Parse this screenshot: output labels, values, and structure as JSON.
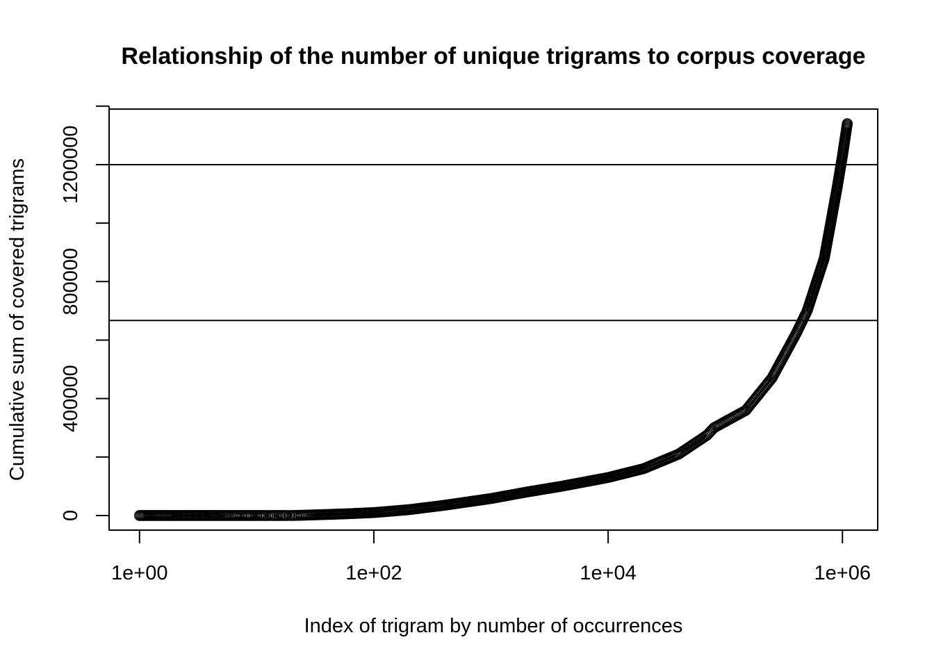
{
  "chart_data": {
    "type": "scatter",
    "title": "Relationship of the number of unique trigrams to corpus coverage",
    "xlabel": "Index of trigram by number of occurrences",
    "ylabel": "Cumulative sum of covered trigrams",
    "x_scale": "log",
    "xlim": [
      0.55,
      2000000
    ],
    "ylim": [
      -50000,
      1390000
    ],
    "x_ticks": [
      1,
      100,
      10000,
      1000000
    ],
    "x_tick_labels": [
      "1e+00",
      "1e+02",
      "1e+04",
      "1e+06"
    ],
    "y_ticks": [
      0,
      200000,
      400000,
      600000,
      800000,
      1000000,
      1200000,
      1400000
    ],
    "y_tick_labels": [
      "0",
      "",
      "400000",
      "",
      "800000",
      "",
      "1200000"
    ],
    "grid": false,
    "legend": "none",
    "marker": "open-circle",
    "reference_lines": [
      {
        "orientation": "horizontal",
        "y": 1200000
      },
      {
        "orientation": "horizontal",
        "y": 667000
      }
    ],
    "series": [
      {
        "x": [
          1,
          2,
          3,
          4,
          5,
          6,
          7,
          8,
          9,
          10,
          11,
          12,
          13,
          14,
          15,
          16,
          17,
          18,
          19,
          20,
          22,
          25,
          30,
          40,
          60,
          100,
          200,
          400,
          1000,
          2000,
          4000,
          10000,
          20000,
          40000,
          70000,
          80000,
          150000,
          250000,
          400000,
          500000,
          700000,
          900000,
          1000000,
          1100000
        ],
        "y": [
          0,
          0,
          0,
          0,
          0,
          0,
          0,
          0,
          0,
          0,
          0,
          0,
          0,
          0,
          0,
          0,
          0,
          0,
          0,
          0,
          500,
          1000,
          2000,
          3500,
          6000,
          10000,
          20000,
          35000,
          58000,
          80000,
          100000,
          130000,
          160000,
          210000,
          275000,
          300000,
          360000,
          470000,
          620000,
          700000,
          880000,
          1120000,
          1230000,
          1340000
        ]
      }
    ]
  }
}
